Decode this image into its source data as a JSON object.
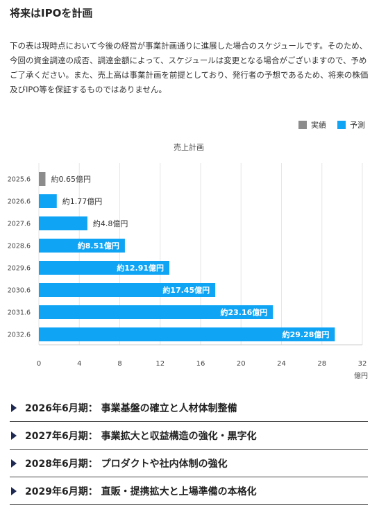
{
  "section": {
    "title": "将来はIPOを計画",
    "lead": "下の表は現時点において今後の経営が事業計画通りに進展した場合のスケジュールです。そのため、今回の資金調達の成否、調達金額によって、スケジュールは変更となる場合がございますので、予めご了承ください。また、売上高は事業計画を前提としており、発行者の予想であるため、将来の株価及びIPO等を保証するものではありません。"
  },
  "legend": {
    "actual_label": "実績",
    "forecast_label": "予測",
    "actual_color": "#8c8c8c",
    "forecast_color": "#10a4f4"
  },
  "chart_data": {
    "type": "bar",
    "orientation": "horizontal",
    "title": "売上計画",
    "categories": [
      "2025.6",
      "2026.6",
      "2027.6",
      "2028.6",
      "2029.6",
      "2030.6",
      "2031.6",
      "2032.6"
    ],
    "values": [
      0.65,
      1.77,
      4.8,
      8.51,
      12.91,
      17.45,
      23.16,
      29.28
    ],
    "data_labels": [
      "約0.65億円",
      "約1.77億円",
      "約4.8億円",
      "約8.51億円",
      "約12.91億円",
      "約17.45億円",
      "約23.16億円",
      "約29.28億円"
    ],
    "status": [
      "actual",
      "forecast",
      "forecast",
      "forecast",
      "forecast",
      "forecast",
      "forecast",
      "forecast"
    ],
    "xlim": [
      0,
      32
    ],
    "xticks": [
      0,
      4,
      8,
      12,
      16,
      20,
      24,
      28,
      32
    ],
    "xunit": "億円",
    "grid": true,
    "legend_position": "top-right"
  },
  "milestones": [
    "2026年6月期： 事業基盤の確立と人材体制整備",
    "2027年6月期： 事業拡大と収益構造の強化・黒字化",
    "2028年6月期： プロダクトや社内体制の強化",
    "2029年6月期： 直販・提携拡大と上場準備の本格化"
  ]
}
